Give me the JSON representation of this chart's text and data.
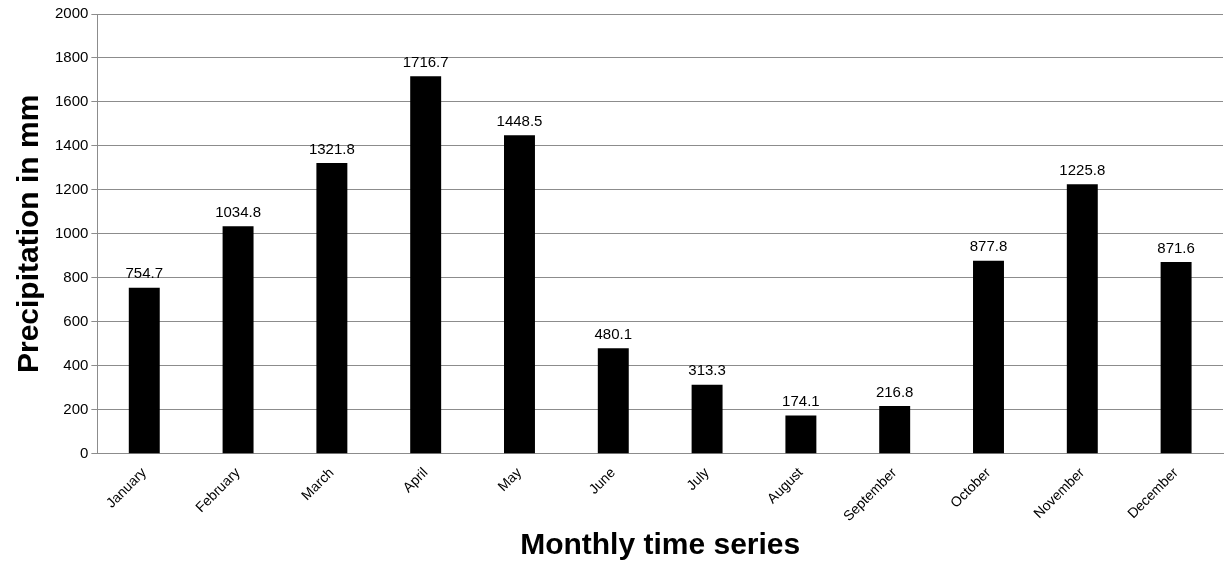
{
  "chart_data": {
    "type": "bar",
    "xlabel": "Monthly time series",
    "ylabel": "Precipitation in mm",
    "categories": [
      "January",
      "February",
      "March",
      "April",
      "May",
      "June",
      "July",
      "August",
      "September",
      "October",
      "November",
      "December"
    ],
    "values": [
      754.7,
      1034.8,
      1321.8,
      1716.7,
      1448.5,
      480.1,
      313.3,
      174.1,
      216.8,
      877.8,
      1225.8,
      871.6
    ],
    "color": "#000000",
    "ylim": [
      0,
      2000
    ],
    "yticks": [
      0,
      200,
      400,
      600,
      800,
      1000,
      1200,
      1400,
      1600,
      1800,
      2000
    ],
    "grid": "y",
    "data_labels": true,
    "legend": false
  }
}
